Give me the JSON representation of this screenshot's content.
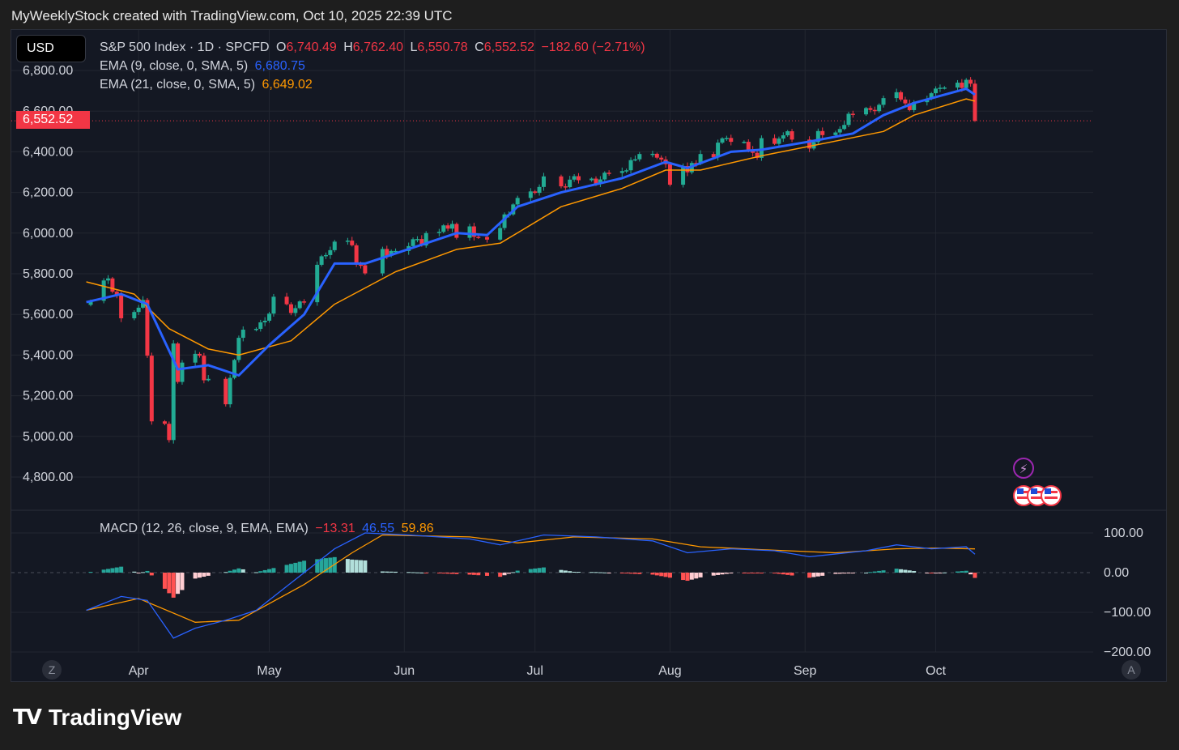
{
  "header": {
    "text": "MyWeeklyStock created with TradingView.com, Oct 10, 2025 22:39 UTC"
  },
  "currency_button": "USD",
  "legend": {
    "symbol": "S&P 500 Index · 1D · SPCFD",
    "o_label": "O",
    "o_value": "6,740.49",
    "h_label": "H",
    "h_value": "6,762.40",
    "l_label": "L",
    "l_value": "6,550.78",
    "c_label": "C",
    "c_value": "6,552.52",
    "change": "−182.60 (−2.71%)",
    "ema9_label": "EMA (9, close, 0, SMA, 5)",
    "ema9_value": "6,680.75",
    "ema21_label": "EMA (21, close, 0, SMA, 5)",
    "ema21_value": "6,649.02",
    "macd_label": "MACD (12, 26, close, 9, EMA, EMA)",
    "macd_hist": "−13.31",
    "macd_line": "46.55",
    "macd_signal": "59.86"
  },
  "last_price_label": "6,552.52",
  "scroll_buttons": {
    "left": "Z",
    "right": "A"
  },
  "logo_text": "TradingView",
  "colors": {
    "up": "#22ab94",
    "down": "#f23645",
    "ema9": "#2962ff",
    "ema21": "#ff9800",
    "macd": "#2962ff",
    "signal": "#ff9800",
    "hist_up": "#26a69a",
    "hist_up_light": "#b2dfdb",
    "hist_down": "#ff5252",
    "hist_down_light": "#ffcdd2"
  },
  "chart_data": [
    {
      "type": "candlestick",
      "title": "S&P 500 Index · 1D · SPCFD",
      "y_ticks": [
        4800,
        5000,
        5200,
        5400,
        5600,
        5800,
        6000,
        6200,
        6400,
        6600,
        6800
      ],
      "y_tick_labels": [
        "4,800.00",
        "5,000.00",
        "5,200.00",
        "5,400.00",
        "5,600.00",
        "5,800.00",
        "6,000.00",
        "6,200.00",
        "6,400.00",
        "6,600.00",
        "6,800.00"
      ],
      "x_labels": [
        "Apr",
        "May",
        "Jun",
        "Jul",
        "Aug",
        "Sep",
        "Oct"
      ],
      "x_label_dates": [
        "2025-04-01",
        "2025-05-01",
        "2025-06-01",
        "2025-07-01",
        "2025-08-01",
        "2025-09-01",
        "2025-10-01"
      ],
      "date_range": [
        "2025-03-20",
        "2025-11-01"
      ],
      "ylim": [
        4680,
        6890
      ],
      "grid": true,
      "last_price": 6552.52,
      "series_closes": [
        [
          "2025-03-21",
          5667
        ],
        [
          "2025-03-24",
          5767
        ],
        [
          "2025-03-25",
          5777
        ],
        [
          "2025-03-26",
          5712
        ],
        [
          "2025-03-27",
          5693
        ],
        [
          "2025-03-28",
          5581
        ],
        [
          "2025-03-31",
          5612
        ],
        [
          "2025-04-01",
          5633
        ],
        [
          "2025-04-02",
          5671
        ],
        [
          "2025-04-03",
          5397
        ],
        [
          "2025-04-04",
          5074
        ],
        [
          "2025-04-07",
          5062
        ],
        [
          "2025-04-08",
          4982
        ],
        [
          "2025-04-09",
          5457
        ],
        [
          "2025-04-10",
          5268
        ],
        [
          "2025-04-11",
          5363
        ],
        [
          "2025-04-14",
          5406
        ],
        [
          "2025-04-15",
          5397
        ],
        [
          "2025-04-16",
          5276
        ],
        [
          "2025-04-17",
          5283
        ],
        [
          "2025-04-21",
          5158
        ],
        [
          "2025-04-22",
          5288
        ],
        [
          "2025-04-23",
          5376
        ],
        [
          "2025-04-24",
          5485
        ],
        [
          "2025-04-25",
          5525
        ],
        [
          "2025-04-28",
          5529
        ],
        [
          "2025-04-29",
          5561
        ],
        [
          "2025-04-30",
          5569
        ],
        [
          "2025-05-01",
          5604
        ],
        [
          "2025-05-02",
          5687
        ],
        [
          "2025-05-05",
          5650
        ],
        [
          "2025-05-06",
          5607
        ],
        [
          "2025-05-07",
          5631
        ],
        [
          "2025-05-08",
          5664
        ],
        [
          "2025-05-09",
          5660
        ],
        [
          "2025-05-12",
          5844
        ],
        [
          "2025-05-13",
          5886
        ],
        [
          "2025-05-14",
          5892
        ],
        [
          "2025-05-15",
          5916
        ],
        [
          "2025-05-16",
          5958
        ],
        [
          "2025-05-19",
          5963
        ],
        [
          "2025-05-20",
          5940
        ],
        [
          "2025-05-21",
          5845
        ],
        [
          "2025-05-22",
          5842
        ],
        [
          "2025-05-23",
          5802
        ],
        [
          "2025-05-27",
          5922
        ],
        [
          "2025-05-28",
          5889
        ],
        [
          "2025-05-29",
          5912
        ],
        [
          "2025-05-30",
          5912
        ],
        [
          "2025-06-02",
          5936
        ],
        [
          "2025-06-03",
          5970
        ],
        [
          "2025-06-04",
          5971
        ],
        [
          "2025-06-05",
          5939
        ],
        [
          "2025-06-06",
          6000
        ],
        [
          "2025-06-09",
          6006
        ],
        [
          "2025-06-10",
          6038
        ],
        [
          "2025-06-11",
          6022
        ],
        [
          "2025-06-12",
          6045
        ],
        [
          "2025-06-13",
          5977
        ],
        [
          "2025-06-16",
          6033
        ],
        [
          "2025-06-17",
          5982
        ],
        [
          "2025-06-18",
          5981
        ],
        [
          "2025-06-20",
          5968
        ],
        [
          "2025-06-23",
          6025
        ],
        [
          "2025-06-24",
          6092
        ],
        [
          "2025-06-25",
          6092
        ],
        [
          "2025-06-26",
          6141
        ],
        [
          "2025-06-27",
          6173
        ],
        [
          "2025-06-30",
          6205
        ],
        [
          "2025-07-01",
          6198
        ],
        [
          "2025-07-02",
          6227
        ],
        [
          "2025-07-03",
          6279
        ],
        [
          "2025-07-07",
          6230
        ],
        [
          "2025-07-08",
          6226
        ],
        [
          "2025-07-09",
          6263
        ],
        [
          "2025-07-10",
          6280
        ],
        [
          "2025-07-11",
          6260
        ],
        [
          "2025-07-14",
          6268
        ],
        [
          "2025-07-15",
          6244
        ],
        [
          "2025-07-16",
          6264
        ],
        [
          "2025-07-17",
          6297
        ],
        [
          "2025-07-18",
          6296
        ],
        [
          "2025-07-21",
          6305
        ],
        [
          "2025-07-22",
          6309
        ],
        [
          "2025-07-23",
          6359
        ],
        [
          "2025-07-24",
          6363
        ],
        [
          "2025-07-25",
          6389
        ],
        [
          "2025-07-28",
          6390
        ],
        [
          "2025-07-29",
          6371
        ],
        [
          "2025-07-30",
          6362
        ],
        [
          "2025-07-31",
          6339
        ],
        [
          "2025-08-01",
          6238
        ],
        [
          "2025-08-04",
          6330
        ],
        [
          "2025-08-05",
          6299
        ],
        [
          "2025-08-06",
          6345
        ],
        [
          "2025-08-07",
          6340
        ],
        [
          "2025-08-08",
          6389
        ],
        [
          "2025-08-11",
          6373
        ],
        [
          "2025-08-12",
          6445
        ],
        [
          "2025-08-13",
          6466
        ],
        [
          "2025-08-14",
          6468
        ],
        [
          "2025-08-15",
          6449
        ],
        [
          "2025-08-18",
          6449
        ],
        [
          "2025-08-19",
          6411
        ],
        [
          "2025-08-20",
          6395
        ],
        [
          "2025-08-21",
          6370
        ],
        [
          "2025-08-22",
          6467
        ],
        [
          "2025-08-25",
          6439
        ],
        [
          "2025-08-26",
          6465
        ],
        [
          "2025-08-27",
          6481
        ],
        [
          "2025-08-28",
          6501
        ],
        [
          "2025-08-29",
          6460
        ],
        [
          "2025-09-02",
          6416
        ],
        [
          "2025-09-03",
          6448
        ],
        [
          "2025-09-04",
          6502
        ],
        [
          "2025-09-05",
          6482
        ],
        [
          "2025-09-08",
          6495
        ],
        [
          "2025-09-09",
          6512
        ],
        [
          "2025-09-10",
          6532
        ],
        [
          "2025-09-11",
          6587
        ],
        [
          "2025-09-12",
          6584
        ],
        [
          "2025-09-15",
          6615
        ],
        [
          "2025-09-16",
          6606
        ],
        [
          "2025-09-17",
          6600
        ],
        [
          "2025-09-18",
          6631
        ],
        [
          "2025-09-19",
          6664
        ],
        [
          "2025-09-22",
          6693
        ],
        [
          "2025-09-23",
          6657
        ],
        [
          "2025-09-24",
          6638
        ],
        [
          "2025-09-25",
          6605
        ],
        [
          "2025-09-26",
          6644
        ],
        [
          "2025-09-29",
          6661
        ],
        [
          "2025-09-30",
          6688
        ],
        [
          "2025-10-01",
          6711
        ],
        [
          "2025-10-02",
          6715
        ],
        [
          "2025-10-03",
          6716
        ],
        [
          "2025-10-06",
          6740
        ],
        [
          "2025-10-07",
          6714
        ],
        [
          "2025-10-08",
          6754
        ],
        [
          "2025-10-09",
          6735
        ],
        [
          "2025-10-10",
          6552.52
        ]
      ],
      "series_ema9_anchors": [
        [
          "2025-03-20",
          5660
        ],
        [
          "2025-03-28",
          5700
        ],
        [
          "2025-04-03",
          5650
        ],
        [
          "2025-04-10",
          5330
        ],
        [
          "2025-04-17",
          5350
        ],
        [
          "2025-04-24",
          5300
        ],
        [
          "2025-05-01",
          5450
        ],
        [
          "2025-05-09",
          5600
        ],
        [
          "2025-05-16",
          5850
        ],
        [
          "2025-05-23",
          5850
        ],
        [
          "2025-05-30",
          5900
        ],
        [
          "2025-06-13",
          6000
        ],
        [
          "2025-06-20",
          5990
        ],
        [
          "2025-06-27",
          6130
        ],
        [
          "2025-07-07",
          6200
        ],
        [
          "2025-07-21",
          6270
        ],
        [
          "2025-07-31",
          6350
        ],
        [
          "2025-08-05",
          6320
        ],
        [
          "2025-08-15",
          6400
        ],
        [
          "2025-08-22",
          6410
        ],
        [
          "2025-09-02",
          6450
        ],
        [
          "2025-09-12",
          6490
        ],
        [
          "2025-09-19",
          6580
        ],
        [
          "2025-09-26",
          6640
        ],
        [
          "2025-10-08",
          6710
        ],
        [
          "2025-10-10",
          6681
        ]
      ],
      "series_ema21_anchors": [
        [
          "2025-03-20",
          5760
        ],
        [
          "2025-03-31",
          5700
        ],
        [
          "2025-04-08",
          5530
        ],
        [
          "2025-04-17",
          5430
        ],
        [
          "2025-04-24",
          5400
        ],
        [
          "2025-05-06",
          5470
        ],
        [
          "2025-05-16",
          5650
        ],
        [
          "2025-05-30",
          5810
        ],
        [
          "2025-06-13",
          5920
        ],
        [
          "2025-06-23",
          5950
        ],
        [
          "2025-07-07",
          6130
        ],
        [
          "2025-07-21",
          6220
        ],
        [
          "2025-07-31",
          6310
        ],
        [
          "2025-08-08",
          6310
        ],
        [
          "2025-08-22",
          6380
        ],
        [
          "2025-09-05",
          6440
        ],
        [
          "2025-09-19",
          6500
        ],
        [
          "2025-09-26",
          6580
        ],
        [
          "2025-10-08",
          6660
        ],
        [
          "2025-10-10",
          6649
        ]
      ]
    },
    {
      "type": "line",
      "title": "MACD (12, 26, close, 9, EMA, EMA)",
      "y_ticks": [
        100,
        0,
        -100,
        -200
      ],
      "y_tick_labels": [
        "100.00",
        "0.00",
        "−100.00",
        "−200.00"
      ],
      "ylim": [
        -195,
        105
      ],
      "series_macd_anchors": [
        [
          "2025-03-20",
          -95
        ],
        [
          "2025-03-28",
          -60
        ],
        [
          "2025-04-03",
          -70
        ],
        [
          "2025-04-09",
          -165
        ],
        [
          "2025-04-14",
          -140
        ],
        [
          "2025-04-21",
          -120
        ],
        [
          "2025-04-28",
          -95
        ],
        [
          "2025-05-09",
          0
        ],
        [
          "2025-05-16",
          60
        ],
        [
          "2025-05-23",
          100
        ],
        [
          "2025-06-02",
          95
        ],
        [
          "2025-06-16",
          85
        ],
        [
          "2025-06-23",
          70
        ],
        [
          "2025-07-03",
          95
        ],
        [
          "2025-07-15",
          90
        ],
        [
          "2025-07-28",
          80
        ],
        [
          "2025-08-05",
          50
        ],
        [
          "2025-08-15",
          60
        ],
        [
          "2025-08-25",
          55
        ],
        [
          "2025-09-02",
          40
        ],
        [
          "2025-09-15",
          55
        ],
        [
          "2025-09-22",
          70
        ],
        [
          "2025-09-30",
          60
        ],
        [
          "2025-10-08",
          65
        ],
        [
          "2025-10-10",
          46.55
        ]
      ],
      "series_signal_anchors": [
        [
          "2025-03-20",
          -95
        ],
        [
          "2025-04-01",
          -65
        ],
        [
          "2025-04-14",
          -125
        ],
        [
          "2025-04-24",
          -120
        ],
        [
          "2025-05-09",
          -30
        ],
        [
          "2025-05-20",
          50
        ],
        [
          "2025-05-27",
          95
        ],
        [
          "2025-06-16",
          90
        ],
        [
          "2025-06-27",
          75
        ],
        [
          "2025-07-10",
          90
        ],
        [
          "2025-07-28",
          85
        ],
        [
          "2025-08-08",
          65
        ],
        [
          "2025-08-22",
          58
        ],
        [
          "2025-09-08",
          50
        ],
        [
          "2025-09-22",
          60
        ],
        [
          "2025-10-01",
          62
        ],
        [
          "2025-10-10",
          59.86
        ]
      ]
    }
  ]
}
